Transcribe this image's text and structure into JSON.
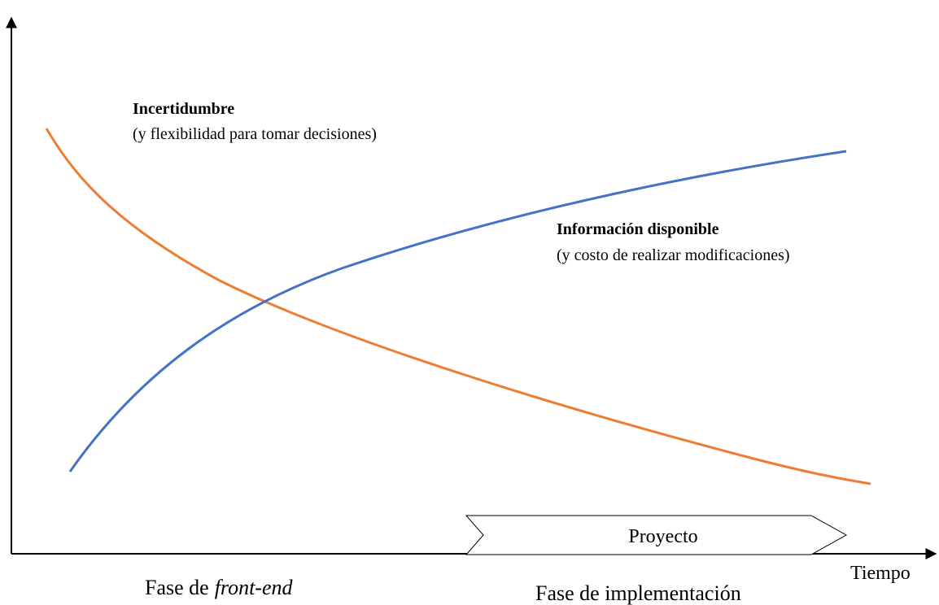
{
  "labels": {
    "uncertainty": {
      "title": "Incertidumbre",
      "subtitle": "(y flexibilidad para tomar decisiones)"
    },
    "information": {
      "title": "Información disponible",
      "subtitle": "(y costo de realizar modificaciones)"
    },
    "project": "Proyecto",
    "time": "Tiempo",
    "front_end": {
      "prefix": "Fase de",
      "term": "front-end"
    },
    "implementation": "Fase de implementación"
  }
}
